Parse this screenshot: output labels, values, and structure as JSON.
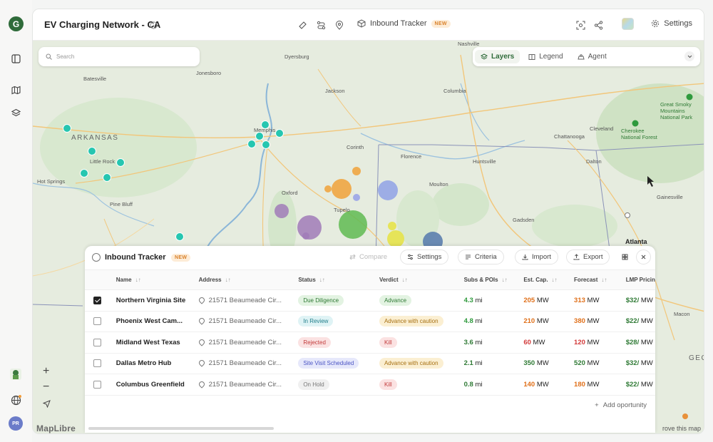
{
  "app": {
    "title": "EV Charging Network - CA",
    "tracker_label": "Inbound Tracker",
    "new_badge": "NEW",
    "settings_label": "Settings"
  },
  "sidebar": {
    "items": [
      {
        "icon": "panel-icon"
      },
      {
        "icon": "map-icon"
      },
      {
        "icon": "layers-icon"
      }
    ],
    "user_initials": "PR"
  },
  "map": {
    "search_placeholder": "Search",
    "layer_tabs": [
      {
        "label": "Layers",
        "active": true
      },
      {
        "label": "Legend",
        "active": false
      },
      {
        "label": "Agent",
        "active": false
      }
    ],
    "attribution": "MapLibre",
    "improve_text": "rove this map",
    "labels": {
      "arkansas": "ARKANSAS",
      "nashville": "Nashville",
      "atlanta": "Atlanta",
      "memphis": "Memphis",
      "jackson": "Jackson",
      "tupelo": "Tupelo",
      "little_rock": "Little Rock",
      "hot_springs": "Hot Springs",
      "pine_bluff": "Pine Bluff",
      "batesville": "Batesville",
      "jonesboro": "Jonesboro",
      "dyersburg": "Dyersburg",
      "columbia": "Columbia",
      "chattanooga": "Chattanooga",
      "cleveland": "Cleveland",
      "florence": "Florence",
      "huntsville": "Huntsville",
      "corinth": "Corinth",
      "oxford": "Oxford",
      "moulton": "Moulton",
      "gadsden": "Gadsden",
      "gainesville": "Gainesville",
      "dalton": "Dalton",
      "macon": "Macon",
      "smoky": "Great Smoky Mountains National Park",
      "cherokee": "Cherokee National Forest",
      "geo": "GEO"
    }
  },
  "tracker": {
    "title": "Inbound Tracker",
    "badge": "NEW",
    "actions": {
      "compare": "Compare",
      "settings": "Settings",
      "criteria": "Criteria",
      "import": "Import",
      "export": "Export"
    },
    "columns": [
      "Name",
      "Address",
      "Status",
      "Verdict",
      "Subs & POIs",
      "Est. Cap.",
      "Forecast",
      "LMP Pricin"
    ],
    "rows": [
      {
        "name": "Northern Virginia Site",
        "address": "21571 Beaumeade Cir...",
        "status": "Due Diligence",
        "status_class": "st-dd",
        "verdict": "Advance",
        "verdict_class": "vd-adv",
        "subs": "4.3",
        "subs_class": "g",
        "cap": "205",
        "cap_class": "o",
        "forecast": "313",
        "forecast_class": "o",
        "lmp": "$32/",
        "checked": true
      },
      {
        "name": "Phoenix West Cam...",
        "address": "21571 Beaumeade Cir...",
        "status": "In Review",
        "status_class": "st-rev",
        "verdict": "Advance with caution",
        "verdict_class": "vd-caut",
        "subs": "4.8",
        "subs_class": "g",
        "cap": "210",
        "cap_class": "o",
        "forecast": "380",
        "forecast_class": "o",
        "lmp": "$22/",
        "checked": false
      },
      {
        "name": "Midland West Texas",
        "address": "21571 Beaumeade Cir...",
        "status": "Rejected",
        "status_class": "st-rej",
        "verdict": "Kill",
        "verdict_class": "vd-kill",
        "subs": "3.6",
        "subs_class": "gd",
        "cap": "60",
        "cap_class": "r",
        "forecast": "120",
        "forecast_class": "r",
        "lmp": "$28/",
        "checked": false
      },
      {
        "name": "Dallas Metro Hub",
        "address": "21571 Beaumeade Cir...",
        "status": "Site Visit Scheduled",
        "status_class": "st-svs",
        "verdict": "Advance with caution",
        "verdict_class": "vd-caut",
        "subs": "2.1",
        "subs_class": "gd",
        "cap": "350",
        "cap_class": "gd",
        "forecast": "520",
        "forecast_class": "gd",
        "lmp": "$32/",
        "checked": false
      },
      {
        "name": "Columbus Greenfield",
        "address": "21571 Beaumeade Cir...",
        "status": "On Hold",
        "status_class": "st-hold",
        "verdict": "Kill",
        "verdict_class": "vd-kill",
        "subs": "0.8",
        "subs_class": "gd",
        "cap": "140",
        "cap_class": "o",
        "forecast": "180",
        "forecast_class": "o",
        "lmp": "$22/",
        "checked": false
      }
    ],
    "units": {
      "subs": "mi",
      "cap": "MW",
      "forecast": "MW",
      "lmp": "MW"
    },
    "add_label": "Add oportunity"
  }
}
